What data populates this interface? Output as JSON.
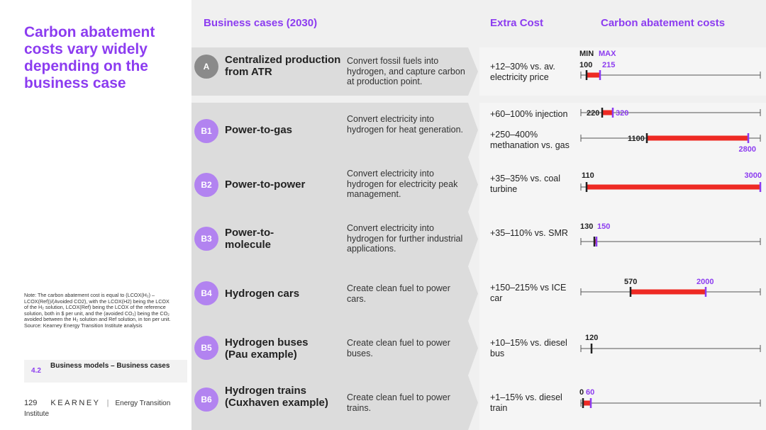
{
  "title": "Carbon abatement costs vary widely depending on the business case",
  "note": "Note: The carbon abatement cost is equal to (LCOX(H₂) – LCOX(Ref))/(Avoided CO2), with the LCOX(H2) being the LCOX of the H₂ solution, LCOX(Ref) being the LCOX of the reference solution, both in $ per unit, and the (avoided CO₂) being the CO₂ avoided between the H₂ solution and Ref solution, in ton per unit.\nSource: Kearney Energy Transition Institute analysis",
  "section": {
    "number": "4.2",
    "label": "Business models – Business cases"
  },
  "footer": {
    "page": "129",
    "brand": "KEARNEY",
    "institute": "Energy Transition Institute"
  },
  "headers": {
    "cases": "Business cases (2030)",
    "extra": "Extra Cost",
    "abatement": "Carbon abatement costs"
  },
  "legend": {
    "min": "MIN",
    "max": "MAX"
  },
  "colors": {
    "accent": "#8c3cf0",
    "bar": "#ee2a24"
  },
  "cases": [
    {
      "id": "A",
      "name": "Centralized production from ATR",
      "desc": "Convert fossil fuels into hydrogen, and capture carbon at production point.",
      "ranges": [
        {
          "extra": "+12–30% vs. av. electricity price",
          "min": 100,
          "max": 215,
          "min_label": "100",
          "max_label": "215"
        }
      ]
    },
    {
      "id": "B1",
      "name": "Power-to-gas",
      "desc": "Convert electricity into hydrogen for heat generation.",
      "ranges": [
        {
          "extra": "+60–100% injection",
          "min": 220,
          "max": 320,
          "min_label": "220",
          "max_label": "320"
        },
        {
          "extra": "+250–400% methanation vs. gas",
          "min": 1100,
          "max": 2800,
          "min_label": "1100",
          "max_label": "2800"
        }
      ]
    },
    {
      "id": "B2",
      "name": "Power-to-power",
      "desc": "Convert electricity into hydrogen for electricity peak management.",
      "ranges": [
        {
          "extra": "+35–35% vs. coal turbine",
          "min": 110,
          "max": 3000,
          "min_label": "110",
          "max_label": "3000"
        }
      ]
    },
    {
      "id": "B3",
      "name": "Power-to-molecule",
      "desc": "Convert electricity into hydrogen for further industrial applications.",
      "ranges": [
        {
          "extra": "+35–110% vs. SMR",
          "min": 130,
          "max": 150,
          "min_label": "130",
          "max_label": "150"
        }
      ]
    },
    {
      "id": "B4",
      "name": "Hydrogen cars",
      "desc": "Create clean fuel to power cars.",
      "ranges": [
        {
          "extra": "+150–215% vs ICE car",
          "min": 570,
          "max": 2000,
          "min_label": "570",
          "max_label": "2000"
        }
      ]
    },
    {
      "id": "B5",
      "name": "Hydrogen buses (Pau example)",
      "desc": "Create clean fuel to power buses.",
      "ranges": [
        {
          "extra": "+10–15% vs. diesel bus",
          "min": 120,
          "max": 120,
          "min_label": "120",
          "max_label": ""
        }
      ]
    },
    {
      "id": "B6",
      "name": "Hydrogen trains (Cuxhaven example)",
      "desc": "Create clean fuel to power trains.",
      "ranges": [
        {
          "extra": "+1–15% vs. diesel train",
          "min": 0,
          "max": 60,
          "min_label": "0",
          "max_label": "60"
        }
      ]
    }
  ]
}
